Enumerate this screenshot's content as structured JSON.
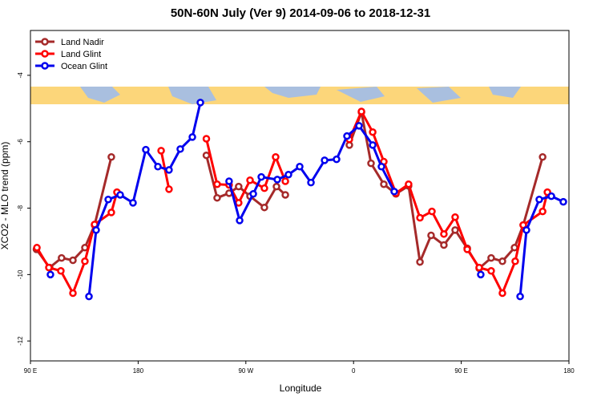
{
  "chart_data": {
    "type": "line",
    "title": "50N-60N July (Ver 9)   2014-09-06 to 2018-12-31",
    "x_label": "Longitude",
    "y_label": "XCO2 - MLO trend (ppm)",
    "xlim": [
      90,
      540
    ],
    "ylim": [
      -12.6,
      -2.65
    ],
    "xticks": [
      {
        "value": 90,
        "label": "90 E"
      },
      {
        "value": 180,
        "label": "180"
      },
      {
        "value": 270,
        "label": "90 W"
      },
      {
        "value": 360,
        "label": "0"
      },
      {
        "value": 450,
        "label": "90 E"
      },
      {
        "value": 540,
        "label": "180"
      }
    ],
    "yticks": [
      -12,
      -10,
      -8,
      -6,
      -4
    ],
    "legend": "top-left",
    "series": [
      {
        "name": "Land Nadir",
        "color": "#a52a2a",
        "x": [
          95,
          106,
          116,
          125.5,
          135.5,
          143.6,
          157.6,
          null,
          237,
          246,
          256,
          264,
          273.5,
          285.5,
          295.6,
          303,
          null,
          356.5,
          366.6,
          374.6,
          385.3,
          395.4,
          406,
          415.5,
          424.8,
          435.5,
          444.9,
          455,
          465,
          475,
          484.4,
          494.5,
          501.8,
          518
        ],
        "values": [
          -9.24,
          -9.79,
          -9.5,
          -9.57,
          -9.19,
          -8.51,
          -6.46,
          null,
          -6.41,
          -7.69,
          -7.55,
          -7.35,
          -7.64,
          -7.98,
          -7.35,
          -7.6,
          null,
          -6.1,
          -5.11,
          -6.65,
          -7.28,
          -7.57,
          -7.33,
          -9.62,
          -8.82,
          -9.11,
          -8.66,
          -9.21,
          -9.81,
          -9.5,
          -9.6,
          -9.19,
          -8.51,
          -6.46
        ]
      },
      {
        "name": "Land Glint",
        "color": "#ff0000",
        "x": [
          95.4,
          105.4,
          115.4,
          125.5,
          135.5,
          143.6,
          157.6,
          162.3,
          null,
          199.2,
          205.8,
          null,
          237,
          246,
          256,
          264,
          273.5,
          285.5,
          294.9,
          303,
          null,
          356.5,
          366.6,
          376,
          385.3,
          395.4,
          406,
          415.5,
          425.5,
          435.5,
          444.9,
          455,
          465,
          475,
          484.4,
          495.1,
          501.8,
          518,
          522
        ],
        "values": [
          -9.19,
          -9.79,
          -9.89,
          -10.56,
          -9.6,
          -8.49,
          -8.13,
          -7.52,
          null,
          -6.27,
          -7.43,
          null,
          -5.91,
          -7.28,
          -7.3,
          -7.84,
          -7.16,
          -7.4,
          -6.46,
          -7.19,
          null,
          -5.93,
          -5.09,
          -5.71,
          -6.6,
          -7.55,
          -7.28,
          -8.29,
          -8.1,
          -8.78,
          -8.27,
          -9.24,
          -9.79,
          -9.89,
          -10.56,
          -9.6,
          -8.51,
          -8.1,
          -7.52
        ]
      },
      {
        "name": "Ocean Glint",
        "color": "#0000ee",
        "x": [
          106.7,
          null,
          138.9,
          144.9,
          155,
          165,
          175.7,
          186.4,
          196.5,
          205.8,
          215.2,
          225.3,
          232,
          null,
          256,
          264.8,
          276.2,
          282.9,
          296.3,
          305.6,
          315,
          324.4,
          335.8,
          345.8,
          354.5,
          364.6,
          376,
          383.3,
          394,
          null,
          466.3,
          null,
          499.2,
          504.5,
          515.2,
          525.3,
          535.3
        ],
        "values": [
          -10.0,
          null,
          -10.66,
          -8.66,
          -7.74,
          -7.6,
          -7.84,
          -6.24,
          -6.75,
          -6.85,
          -6.22,
          -5.86,
          -4.82,
          null,
          -7.19,
          -8.37,
          -7.57,
          -7.06,
          -7.14,
          -6.99,
          -6.75,
          -7.23,
          -6.56,
          -6.53,
          -5.83,
          -5.52,
          -6.1,
          -6.75,
          -7.5,
          null,
          -10.0,
          null,
          -10.66,
          -8.66,
          -7.74,
          -7.64,
          -7.81
        ]
      }
    ]
  }
}
